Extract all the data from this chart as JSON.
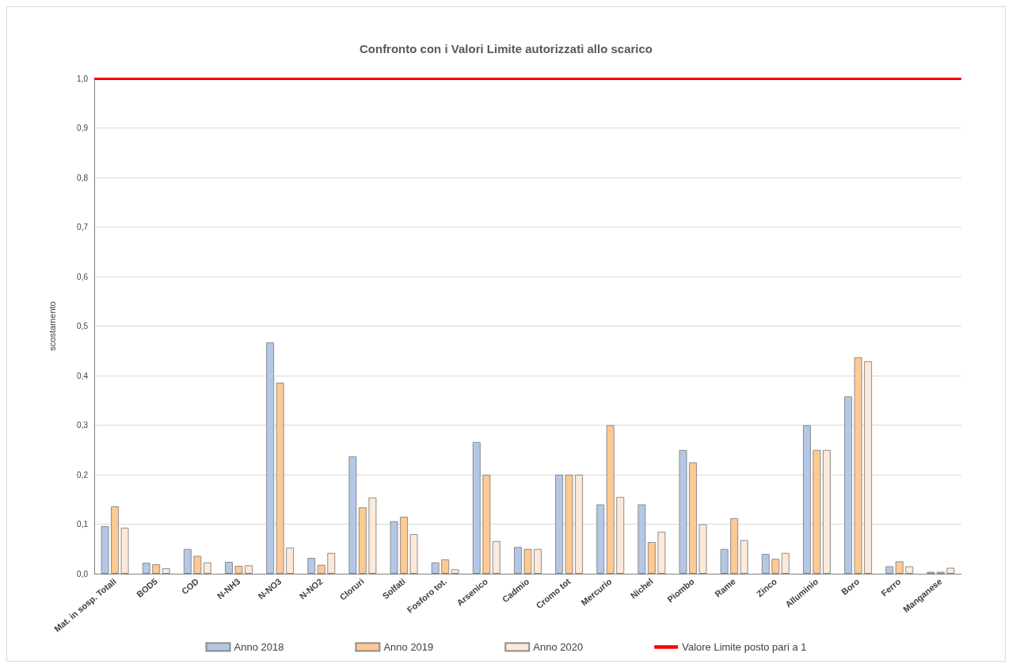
{
  "chart_data": {
    "type": "bar",
    "title": "Confronto con i Valori Limite autorizzati allo scarico",
    "ylabel": "scostamento",
    "categories": [
      "Mat. in sosp. Totali",
      "BOD5",
      "COD",
      "N-NH3",
      "N-NO3",
      "N-NO2",
      "Cloruri",
      "Solfati",
      "Fosforo tot.",
      "Arsenico",
      "Cadmio",
      "Cromo tot",
      "Mercurio",
      "Nichel",
      "Piombo",
      "Rame",
      "Zinco",
      "Alluminio",
      "Boro",
      "Ferro",
      "Manganese"
    ],
    "series": [
      {
        "name": "Anno 2018",
        "color": "#b4c7e7",
        "values": [
          0.096,
          0.022,
          0.05,
          0.024,
          0.467,
          0.032,
          0.237,
          0.106,
          0.023,
          0.266,
          0.054,
          0.2,
          0.14,
          0.14,
          0.25,
          0.05,
          0.04,
          0.3,
          0.358,
          0.015,
          0.004
        ]
      },
      {
        "name": "Anno 2019",
        "color": "#ffc992",
        "values": [
          0.136,
          0.019,
          0.036,
          0.016,
          0.386,
          0.018,
          0.134,
          0.115,
          0.029,
          0.2,
          0.05,
          0.2,
          0.3,
          0.064,
          0.225,
          0.112,
          0.03,
          0.25,
          0.437,
          0.025,
          0.004
        ]
      },
      {
        "name": "Anno 2020",
        "color": "#fde9d9",
        "values": [
          0.093,
          0.011,
          0.023,
          0.017,
          0.053,
          0.042,
          0.154,
          0.08,
          0.009,
          0.066,
          0.05,
          0.2,
          0.155,
          0.085,
          0.1,
          0.068,
          0.042,
          0.25,
          0.429,
          0.015,
          0.012
        ]
      }
    ],
    "ref_lines": [
      {
        "axis": "y",
        "value": 1,
        "label": "Valore Limite posto pari a 1",
        "color": "#ff0000"
      }
    ],
    "ylim": [
      0,
      1
    ],
    "yticks": [
      {
        "value": 0,
        "label": "0,0"
      },
      {
        "value": 0.1,
        "label": "0,1"
      },
      {
        "value": 0.2,
        "label": "0,2"
      },
      {
        "value": 0.3,
        "label": "0,3"
      },
      {
        "value": 0.4,
        "label": "0,4"
      },
      {
        "value": 0.5,
        "label": "0,5"
      },
      {
        "value": 0.6,
        "label": "0,6"
      },
      {
        "value": 0.7,
        "label": "0,7"
      },
      {
        "value": 0.8,
        "label": "0,8"
      },
      {
        "value": 0.9,
        "label": "0,9"
      },
      {
        "value": 1,
        "label": "1,0"
      }
    ],
    "grid": "y",
    "legend": "bottom"
  }
}
